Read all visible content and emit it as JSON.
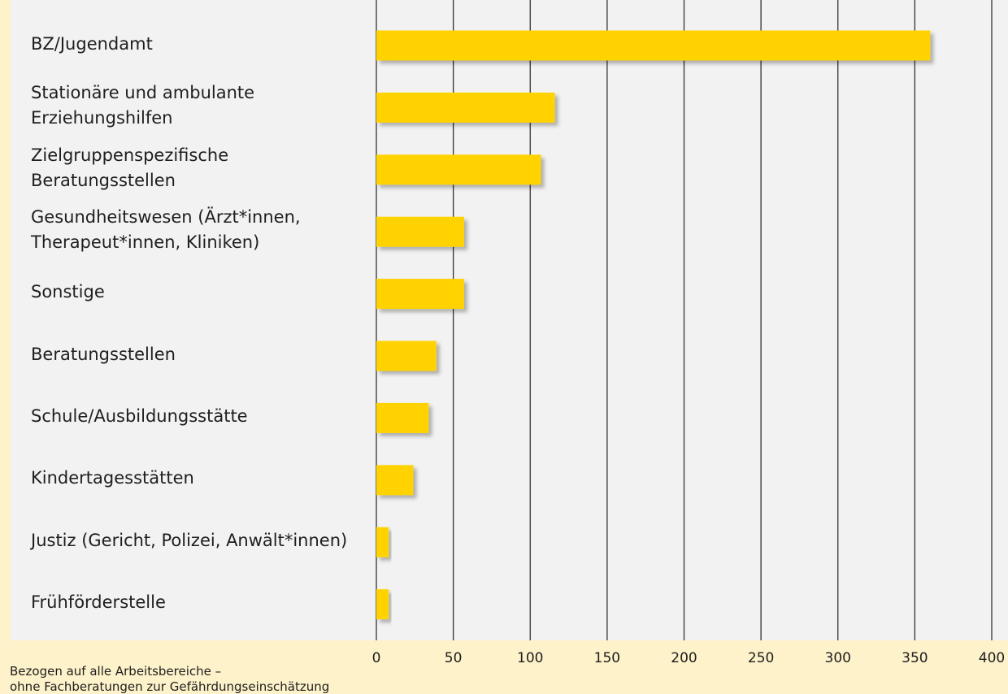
{
  "chart_data": {
    "type": "bar",
    "orientation": "horizontal",
    "categories": [
      "BZ/Jugendamt",
      "Stationäre und ambulante\nErziehungshilfen",
      "Zielgruppenspezifische\nBeratungsstellen",
      "Gesundheitswesen (Ärzt*innen,\nTherapeut*innen, Kliniken)",
      "Sonstige",
      "Beratungsstellen",
      "Schule/Ausbildungsstätte",
      "Kindertagesstätten",
      "Justiz (Gericht, Polizei, Anwält*innen)",
      "Frühförderstelle"
    ],
    "values": [
      360,
      116,
      107,
      57,
      57,
      39,
      34,
      24,
      8,
      8
    ],
    "xlim": [
      0,
      400
    ],
    "xticks": [
      0,
      50,
      100,
      150,
      200,
      250,
      300,
      350,
      400
    ],
    "grid": "vertical",
    "legend": "none",
    "bar_color": "#ffd200",
    "grid_color": "#333333",
    "panel_color": "#f2f2f2",
    "background_color": "#fdf2c9",
    "footnote": [
      "Bezogen auf alle Arbeitsbereiche –",
      "ohne Fachberatungen zur Gefährdungseinschätzung"
    ]
  }
}
